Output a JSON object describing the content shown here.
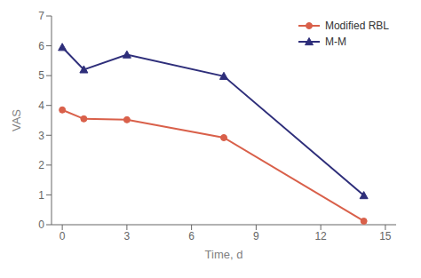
{
  "chart_data": {
    "type": "line",
    "x": [
      0,
      1,
      3,
      7.5,
      14
    ],
    "series": [
      {
        "name": "Modified RBL",
        "color": "#d9604a",
        "marker": "circle",
        "values": [
          3.85,
          3.55,
          3.52,
          2.92,
          0.12
        ]
      },
      {
        "name": "M-M",
        "color": "#2e2e7a",
        "marker": "triangle",
        "values": [
          5.95,
          5.2,
          5.7,
          4.98,
          0.98
        ]
      }
    ],
    "xlabel": "Time, d",
    "ylabel": "VAS",
    "xlim": [
      -0.5,
      15.5
    ],
    "ylim": [
      0,
      7
    ],
    "xticks": [
      0,
      3,
      6,
      9,
      12,
      15
    ],
    "yticks": [
      0,
      1,
      2,
      3,
      4,
      5,
      6,
      7
    ],
    "grid": false,
    "legend": "upper right"
  }
}
